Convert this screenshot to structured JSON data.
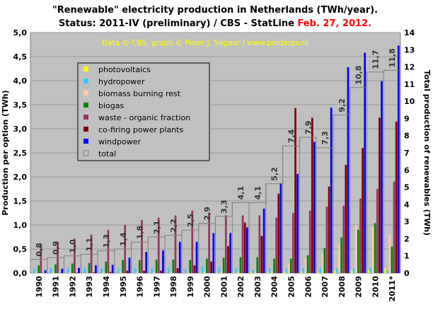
{
  "title_line1": "\"Renewable\" electricity production in Netherlands (TWh/year).",
  "title_line2": "Status: 2011-IV (preliminary) / CBS - StatLine ",
  "title_date": "Feb. 27, 2012.",
  "credit": "Data © CBS, graph © Peter J. Segaar / www.polderpv.nl",
  "chart_data": {
    "type": "bar",
    "categories": [
      "1990",
      "1991",
      "1992",
      "1993",
      "1994",
      "1995",
      "1996",
      "1997",
      "1998",
      "1999",
      "2000",
      "2001",
      "2002",
      "2003",
      "2004",
      "2005",
      "2006",
      "2007",
      "2008",
      "2009",
      "2010",
      "2011*"
    ],
    "ylabel": "Production per option (TWh)",
    "y2label": "Total production of renewables (TWh)",
    "ylim": [
      0,
      5.0
    ],
    "y2lim": [
      0,
      14
    ],
    "yticks": [
      "0,0",
      "0,5",
      "1,0",
      "1,5",
      "2,0",
      "2,5",
      "3,0",
      "3,5",
      "4,0",
      "4,5",
      "5,0"
    ],
    "y2ticks": [
      "0",
      "1",
      "2",
      "3",
      "4",
      "5",
      "6",
      "7",
      "8",
      "9",
      "10",
      "11",
      "12",
      "13",
      "14"
    ],
    "grid": true,
    "legend_position": "upper-left",
    "series": [
      {
        "name": "photovoltaics",
        "color": "#ffff00",
        "values": [
          0,
          0,
          0,
          0,
          0,
          0,
          0,
          0,
          0,
          0,
          0.01,
          0.01,
          0.01,
          0.02,
          0.02,
          0.03,
          0.03,
          0.03,
          0.04,
          0.05,
          0.06,
          0.1
        ]
      },
      {
        "name": "hydropower",
        "color": "#33ccff",
        "values": [
          0.1,
          0.11,
          0.12,
          0.11,
          0.1,
          0.09,
          0.1,
          0.1,
          0.11,
          0.09,
          0.14,
          0.12,
          0.11,
          0.07,
          0.1,
          0.09,
          0.11,
          0.11,
          0.1,
          0.1,
          0.11,
          0.06
        ]
      },
      {
        "name": "biomass burning rest",
        "color": "#ffccaa",
        "values": [
          0.01,
          0.01,
          0.01,
          0.01,
          0.02,
          0.02,
          0.02,
          0.02,
          0.02,
          0.02,
          0.03,
          0.03,
          0.03,
          0.03,
          0.05,
          0.2,
          0.3,
          0.4,
          0.6,
          1.0,
          0.95,
          0.8
        ]
      },
      {
        "name": "biogas",
        "color": "#008800",
        "values": [
          0.16,
          0.18,
          0.2,
          0.21,
          0.24,
          0.27,
          0.27,
          0.28,
          0.28,
          0.27,
          0.3,
          0.32,
          0.33,
          0.33,
          0.3,
          0.3,
          0.37,
          0.52,
          0.74,
          0.9,
          1.04,
          0.55
        ]
      },
      {
        "name": "waste - organic fraction",
        "color": "#993366",
        "values": [
          0.6,
          0.65,
          0.72,
          0.8,
          0.9,
          1.0,
          1.1,
          1.15,
          1.2,
          1.3,
          1.25,
          1.2,
          1.2,
          1.2,
          1.15,
          1.25,
          1.3,
          1.38,
          1.4,
          1.55,
          1.75,
          1.9
        ]
      },
      {
        "name": "co-firing power plants",
        "color": "#800000",
        "values": [
          0,
          0,
          0.01,
          0.01,
          0.02,
          0.05,
          0.05,
          0.05,
          0.1,
          0.16,
          0.24,
          0.56,
          1.05,
          0.77,
          1.65,
          3.43,
          3.23,
          1.8,
          2.25,
          2.6,
          3.23,
          3.15
        ]
      },
      {
        "name": "windpower",
        "color": "#0000ff",
        "values": [
          0.06,
          0.09,
          0.11,
          0.16,
          0.17,
          0.32,
          0.44,
          0.47,
          0.65,
          0.65,
          0.83,
          0.83,
          0.95,
          1.34,
          1.87,
          2.06,
          2.73,
          3.44,
          4.28,
          4.58,
          3.99,
          4.73
        ]
      },
      {
        "name": "total",
        "color": "#808080",
        "type": "step",
        "values": [
          0.8,
          0.9,
          1.0,
          1.1,
          1.3,
          1.4,
          1.8,
          2.1,
          2.2,
          2.5,
          2.9,
          3.3,
          4.1,
          4.1,
          5.2,
          7.4,
          7.9,
          7.3,
          9.2,
          10.8,
          11.7,
          11.8
        ]
      }
    ],
    "total_labels": [
      "0,8",
      "0,9",
      "1,0",
      "1,1",
      "1,3",
      "1,4",
      "1,8",
      "2,1",
      "2,2",
      "2,5",
      "2,9",
      "3,3",
      "4,1",
      "4,1",
      "5,2",
      "7,4",
      "7,9",
      "7,3",
      "9,2",
      "10,8",
      "11,7",
      "11,8"
    ]
  }
}
